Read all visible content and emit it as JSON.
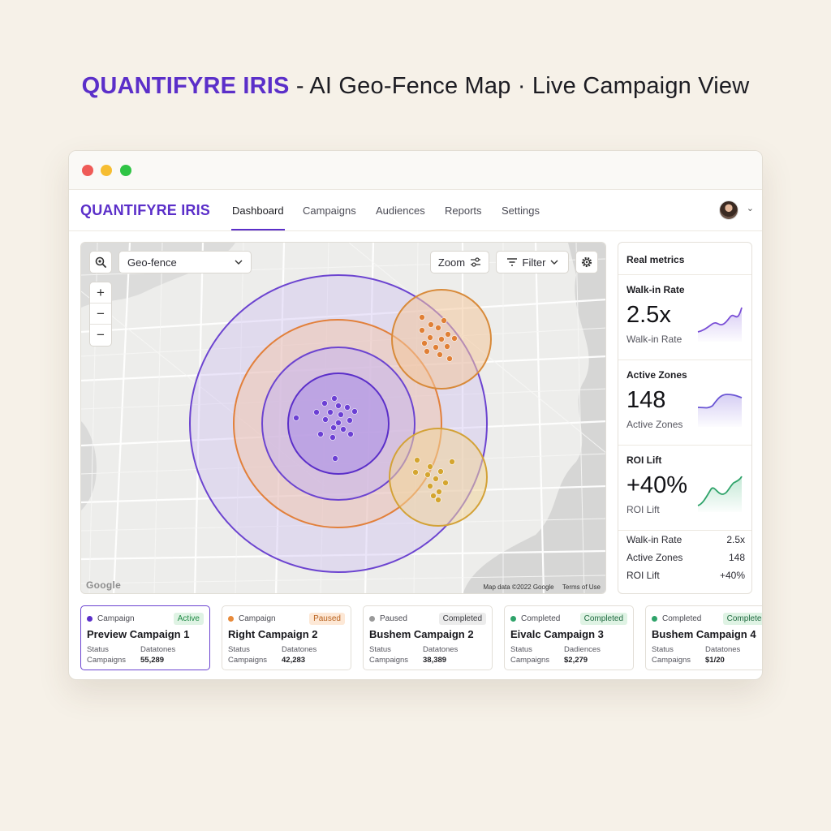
{
  "headline": {
    "brand": "QUANTIFYRE IRIS",
    "rest": " - AI Geo-Fence Map · Live Campaign View"
  },
  "app": {
    "logo": "QUANTIFYRE IRIS",
    "nav": [
      "Dashboard",
      "Campaigns",
      "Audiences",
      "Reports",
      "Settings"
    ],
    "active_nav": "Dashboard"
  },
  "map": {
    "search_icon": "map-search-icon",
    "geofence_select": "Geo-fence",
    "zoom_label": "Zoom",
    "filter_label": "Filter",
    "zoom_in": "+",
    "zoom_out_1": "−",
    "zoom_out_2": "−",
    "google_logo": "Google",
    "map_data": "Map data ©2022 Google",
    "terms": "Terms of Use"
  },
  "metrics": {
    "title": "Real metrics",
    "cards": [
      {
        "label": "Walk-in Rate",
        "value": "2.5x",
        "sub": "Walk-in Rate",
        "color": "#7a4fd6"
      },
      {
        "label": "Active Zones",
        "value": "148",
        "sub": "Active Zones",
        "color": "#6a55d4"
      },
      {
        "label": "ROI Lift",
        "value": "+40%",
        "sub": "ROI Lift",
        "color": "#2fa36a"
      }
    ],
    "summary": [
      {
        "k": "Walk-in Rate",
        "v": "2.5x"
      },
      {
        "k": "Active Zones",
        "v": "148"
      },
      {
        "k": "ROI Lift",
        "v": "+40%"
      }
    ]
  },
  "campaigns": [
    {
      "type": "Campaign",
      "dot": "#5b2fc9",
      "badge": "Active",
      "badge_bg": "#dff3e4",
      "badge_fg": "#1f8a45",
      "name": "Preview Campaign 1",
      "k1": "Status",
      "k2": "Campaigns",
      "m1": "Datatones",
      "m2": "55,289"
    },
    {
      "type": "Campaign",
      "dot": "#e88a3a",
      "badge": "Paused",
      "badge_bg": "#fde8d6",
      "badge_fg": "#b8611d",
      "name": "Right Campaign 2",
      "k1": "Status",
      "k2": "Campaigns",
      "m1": "Datatones",
      "m2": "42,283"
    },
    {
      "type": "Paused",
      "dot": "#9a9a9a",
      "badge": "Completed",
      "badge_bg": "#ececec",
      "badge_fg": "#3b3b40",
      "name": "Bushem Campaign 2",
      "k1": "Status",
      "k2": "Campaigns",
      "m1": "Datatones",
      "m2": "38,389"
    },
    {
      "type": "Completed",
      "dot": "#2fa36a",
      "badge": "Completed",
      "badge_bg": "#dff3e4",
      "badge_fg": "#1f6a40",
      "name": "Eivalc Campaign 3",
      "k1": "Status",
      "k2": "Campaigns",
      "m1": "Dadiences",
      "m2": "$2,279"
    },
    {
      "type": "Completed",
      "dot": "#2fa36a",
      "badge": "Completed",
      "badge_bg": "#dff3e4",
      "badge_fg": "#1f6a40",
      "name": "Bushem Campaign 4",
      "k1": "Status",
      "k2": "Campaigns",
      "m1": "Datatones",
      "m2": "$1/20"
    }
  ]
}
